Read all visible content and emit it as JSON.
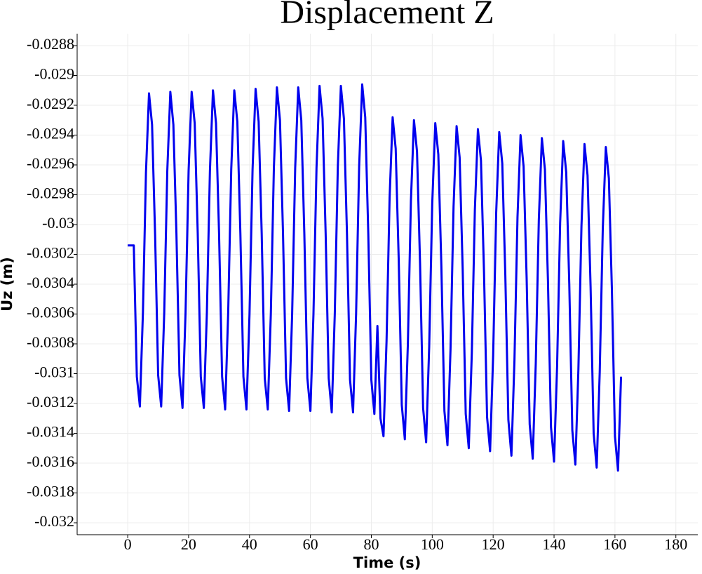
{
  "chart_data": {
    "type": "line",
    "title": "Displacement Z",
    "x_label": "Time (s)",
    "y_label": "Uz (m)",
    "color": "#0000ee",
    "grid": true,
    "xlim": [
      -16.6,
      187.2
    ],
    "xticks": [
      0,
      20,
      40,
      60,
      80,
      100,
      120,
      140,
      160,
      180
    ],
    "ylim": [
      -0.03208,
      -0.02872
    ],
    "yticks": [
      -0.0288,
      -0.029,
      -0.0292,
      -0.0294,
      -0.0296,
      -0.0298,
      -0.03,
      -0.0302,
      -0.0304,
      -0.0306,
      -0.0308,
      -0.031,
      -0.0312,
      -0.0314,
      -0.0316,
      -0.0318,
      -0.032
    ],
    "x": [
      0,
      1,
      2,
      3,
      4,
      5,
      6,
      7,
      8,
      9,
      10,
      11,
      12,
      13,
      14,
      15,
      16,
      17,
      18,
      19,
      20,
      21,
      22,
      23,
      24,
      25,
      26,
      27,
      28,
      29,
      30,
      31,
      32,
      33,
      34,
      35,
      36,
      37,
      38,
      39,
      40,
      41,
      42,
      43,
      44,
      45,
      46,
      47,
      48,
      49,
      50,
      51,
      52,
      53,
      54,
      55,
      56,
      57,
      58,
      59,
      60,
      61,
      62,
      63,
      64,
      65,
      66,
      67,
      68,
      69,
      70,
      71,
      72,
      73,
      74,
      75,
      76,
      77,
      78,
      79,
      80,
      81,
      82,
      83,
      84,
      85,
      86,
      87,
      88,
      89,
      90,
      91,
      92,
      93,
      94,
      95,
      96,
      97,
      98,
      99,
      100,
      101,
      102,
      103,
      104,
      105,
      106,
      107,
      108,
      109,
      110,
      111,
      112,
      113,
      114,
      115,
      116,
      117,
      118,
      119,
      120,
      121,
      122,
      123,
      124,
      125,
      126,
      127,
      128,
      129,
      130,
      131,
      132,
      133,
      134,
      135,
      136,
      137,
      138,
      139,
      140,
      141,
      142,
      143,
      144,
      145,
      146,
      147,
      148,
      149,
      150,
      151,
      152,
      153,
      154,
      155,
      156,
      157,
      158,
      159,
      160,
      161,
      162
    ],
    "values": [
      -0.03014,
      -0.03014,
      -0.03014,
      -0.03102,
      -0.03122,
      -0.03059,
      -0.02965,
      -0.02912,
      -0.02933,
      -0.03007,
      -0.03101,
      -0.03122,
      -0.03059,
      -0.02964,
      -0.02911,
      -0.02933,
      -0.03006,
      -0.03101,
      -0.03123,
      -0.03059,
      -0.02964,
      -0.02911,
      -0.02932,
      -0.03006,
      -0.03102,
      -0.03123,
      -0.03059,
      -0.02964,
      -0.0291,
      -0.02932,
      -0.03006,
      -0.03102,
      -0.03124,
      -0.03059,
      -0.02963,
      -0.0291,
      -0.02931,
      -0.03006,
      -0.03102,
      -0.03124,
      -0.0306,
      -0.02963,
      -0.02909,
      -0.02931,
      -0.03006,
      -0.03103,
      -0.03124,
      -0.0306,
      -0.02962,
      -0.02908,
      -0.0293,
      -0.03006,
      -0.03103,
      -0.03125,
      -0.0306,
      -0.02962,
      -0.02908,
      -0.0293,
      -0.03006,
      -0.03103,
      -0.03125,
      -0.0306,
      -0.02962,
      -0.02907,
      -0.02929,
      -0.03006,
      -0.03103,
      -0.03126,
      -0.0306,
      -0.02961,
      -0.02907,
      -0.02929,
      -0.03006,
      -0.03104,
      -0.03126,
      -0.0306,
      -0.02961,
      -0.02906,
      -0.02928,
      -0.03006,
      -0.03104,
      -0.03127,
      -0.03068,
      -0.0313,
      -0.03142,
      -0.03078,
      -0.02982,
      -0.02928,
      -0.02949,
      -0.03024,
      -0.03121,
      -0.03144,
      -0.0308,
      -0.02984,
      -0.0293,
      -0.02951,
      -0.03026,
      -0.03123,
      -0.03146,
      -0.03082,
      -0.02986,
      -0.02932,
      -0.02953,
      -0.03028,
      -0.03125,
      -0.03148,
      -0.03084,
      -0.02988,
      -0.02934,
      -0.02955,
      -0.0303,
      -0.03127,
      -0.0315,
      -0.03086,
      -0.0299,
      -0.02936,
      -0.02957,
      -0.03032,
      -0.03129,
      -0.03152,
      -0.03088,
      -0.02992,
      -0.02938,
      -0.02959,
      -0.03034,
      -0.03131,
      -0.03155,
      -0.03091,
      -0.02995,
      -0.0294,
      -0.02961,
      -0.03036,
      -0.03134,
      -0.03157,
      -0.03093,
      -0.02997,
      -0.02942,
      -0.02963,
      -0.03038,
      -0.03136,
      -0.03159,
      -0.03095,
      -0.02999,
      -0.02944,
      -0.02965,
      -0.0304,
      -0.03138,
      -0.03161,
      -0.03097,
      -0.03001,
      -0.02946,
      -0.02967,
      -0.03042,
      -0.0314,
      -0.03163,
      -0.03099,
      -0.03003,
      -0.02948,
      -0.02969,
      -0.03044,
      -0.03142,
      -0.03165,
      -0.03102
    ]
  }
}
